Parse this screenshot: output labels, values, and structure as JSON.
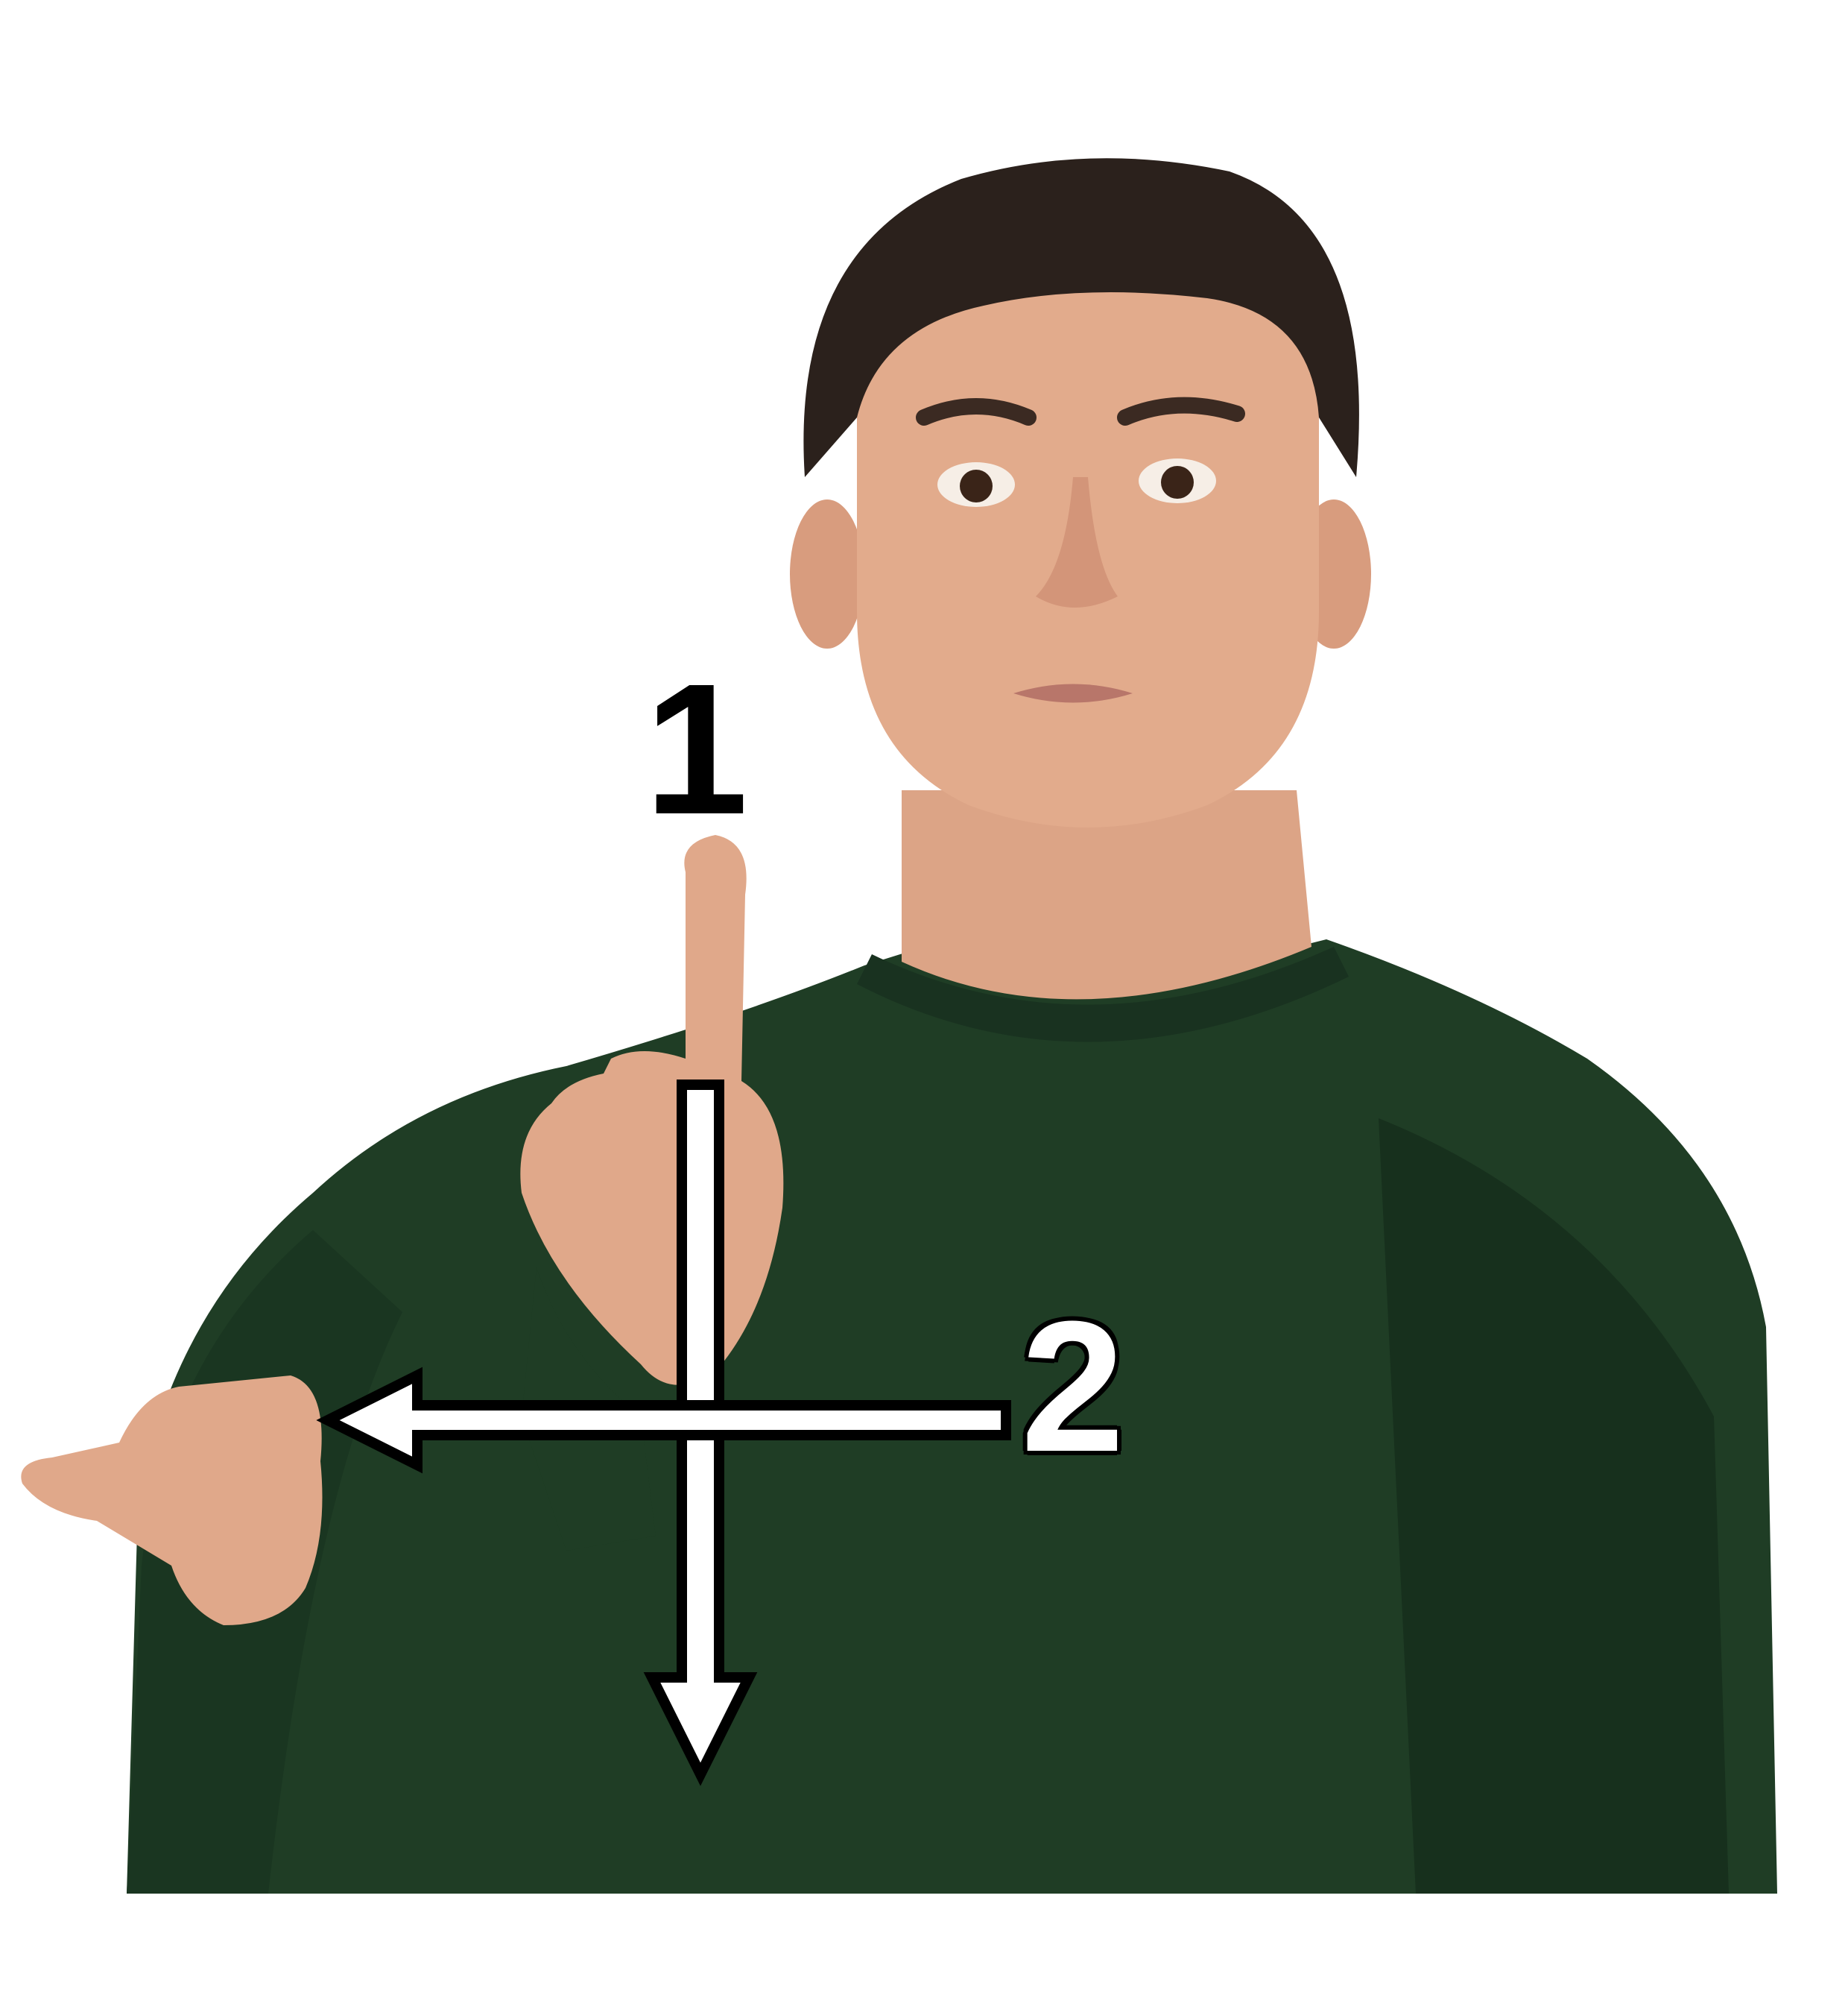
{
  "steps": [
    {
      "label": "1",
      "direction": "down"
    },
    {
      "label": "2",
      "direction": "left"
    }
  ],
  "colors": {
    "background": "#ffffff",
    "shirt": "#1f3d25",
    "skin": "#e2ab8c",
    "hair": "#2b211c",
    "arrow_fill": "#ffffff",
    "arrow_stroke": "#000000"
  }
}
